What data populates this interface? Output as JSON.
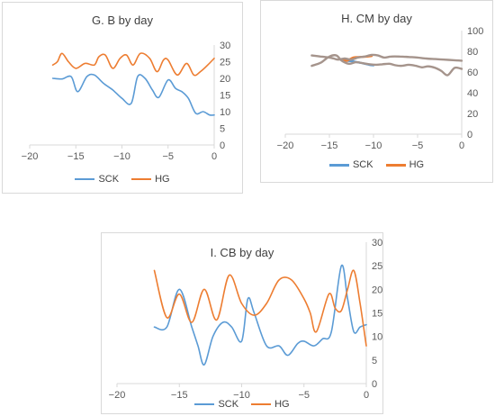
{
  "colors": {
    "SCK": "#5b9bd5",
    "HG": "#ed7d31",
    "extra": "#a5948c",
    "grid": "#d9d9d9"
  },
  "chart_data": [
    {
      "type": "line",
      "title": "G. B by day",
      "xlim": [
        -20,
        0
      ],
      "ylim": [
        0,
        30
      ],
      "x_ticks": [
        -20,
        -15,
        -10,
        -5,
        0
      ],
      "y_ticks": [
        0,
        5,
        10,
        15,
        20,
        25,
        30
      ],
      "legend": "bottom",
      "series": [
        {
          "name": "SCK",
          "color": "#5b9bd5",
          "x": [
            -17.5,
            -16.5,
            -15.5,
            -14.8,
            -13.8,
            -13,
            -12,
            -11,
            -10,
            -9,
            -8.3,
            -7.5,
            -6.7,
            -6,
            -5,
            -4.2,
            -3.5,
            -2.8,
            -2,
            -1.2,
            -0.5,
            0
          ],
          "values": [
            20,
            19.8,
            20.5,
            16,
            20.5,
            21,
            18.5,
            16.5,
            14,
            12.5,
            20.5,
            20,
            16.5,
            14.3,
            19.5,
            17,
            16,
            14,
            9.5,
            10,
            9,
            9
          ]
        },
        {
          "name": "HG",
          "color": "#ed7d31",
          "x": [
            -17.5,
            -17,
            -16.5,
            -15.8,
            -15,
            -14,
            -13,
            -12.5,
            -11.8,
            -11,
            -10.2,
            -9.5,
            -8.8,
            -8,
            -7,
            -6.2,
            -5.5,
            -5,
            -4,
            -3,
            -2.2,
            -1.5,
            -0.7,
            0
          ],
          "values": [
            24,
            25,
            27.5,
            25,
            23,
            24.5,
            24,
            26.5,
            27,
            23,
            26,
            27,
            24,
            27.5,
            26,
            22,
            25.5,
            25.5,
            21,
            24.5,
            21,
            22,
            24,
            26
          ]
        }
      ]
    },
    {
      "type": "line",
      "title": "H. CM by day",
      "xlim": [
        -20,
        0
      ],
      "ylim": [
        0,
        100
      ],
      "x_ticks": [
        -20,
        -15,
        -10,
        -5,
        0
      ],
      "y_ticks": [
        0,
        20,
        40,
        60,
        80,
        100
      ],
      "legend": "bottom",
      "series": [
        {
          "name": "SCK",
          "color": "#5b9bd5",
          "x": [
            -13.5,
            -12.5,
            -11.5,
            -10.5,
            -10
          ],
          "values": [
            71,
            70.5,
            69,
            67,
            66.5
          ]
        },
        {
          "name": "HG",
          "color": "#ed7d31",
          "x": [
            -13.5,
            -13,
            -12.3,
            -11.5,
            -10.7,
            -10.2
          ],
          "values": [
            72,
            71,
            74,
            74.5,
            75,
            75.5
          ]
        },
        {
          "color": "#a5948c",
          "x": [
            -17,
            -16,
            -15,
            -14.5,
            -14,
            -13.3,
            -12.5,
            -11.8,
            -11,
            -10.2,
            -9.5,
            -8.8,
            -8,
            -7,
            -6,
            -5,
            -4,
            -3,
            -2,
            -1,
            0
          ],
          "values": [
            76,
            75,
            74,
            73,
            72,
            73,
            72,
            74,
            75,
            76.5,
            76,
            74,
            75,
            75,
            74.5,
            74,
            73,
            72.5,
            72,
            71.5,
            71
          ]
        },
        {
          "color": "#a5948c",
          "x": [
            -17,
            -16,
            -15,
            -14.2,
            -13.6,
            -12.8,
            -12,
            -11.2,
            -10.4,
            -9.7,
            -9,
            -8.2,
            -7.5,
            -6.8,
            -6,
            -5.2,
            -4.5,
            -3.8,
            -3,
            -2.3,
            -1.6,
            -0.8,
            0
          ],
          "values": [
            66,
            69,
            75,
            76,
            71,
            68,
            69.5,
            68.5,
            67.5,
            67,
            67.5,
            68,
            66.5,
            66,
            67,
            66,
            64.5,
            65.5,
            64,
            61,
            57,
            64,
            63
          ]
        }
      ]
    },
    {
      "type": "line",
      "title": "I. CB by day",
      "xlim": [
        -20,
        0
      ],
      "ylim": [
        0,
        30
      ],
      "x_ticks": [
        -20,
        -15,
        -10,
        -5,
        0
      ],
      "y_ticks": [
        0,
        5,
        10,
        15,
        20,
        25,
        30
      ],
      "legend": "bottom",
      "series": [
        {
          "name": "SCK",
          "color": "#5b9bd5",
          "x": [
            -17,
            -16,
            -15,
            -14,
            -13.5,
            -13,
            -12.3,
            -11.5,
            -10.8,
            -10,
            -9.5,
            -9,
            -8,
            -7,
            -6.3,
            -5.5,
            -5,
            -4.2,
            -3.5,
            -2.8,
            -2,
            -1.5,
            -1,
            -0.5,
            0
          ],
          "values": [
            12,
            12,
            20,
            12,
            8,
            4,
            10,
            13,
            12,
            9,
            18,
            15,
            8,
            8,
            6,
            8.5,
            9,
            8,
            9.5,
            11,
            25,
            18,
            11,
            12,
            12.5
          ]
        },
        {
          "name": "HG",
          "color": "#ed7d31",
          "x": [
            -17,
            -16,
            -15,
            -14,
            -13,
            -12,
            -11,
            -10,
            -9,
            -8,
            -7,
            -6,
            -5,
            -4.5,
            -4,
            -3,
            -2.5,
            -2,
            -1.5,
            -1,
            -0.5,
            0
          ],
          "values": [
            24,
            14,
            19,
            13,
            20,
            13.5,
            23,
            17,
            14.5,
            17,
            22,
            22,
            18,
            15,
            11,
            19,
            16,
            15.5,
            20,
            24,
            17,
            8
          ]
        }
      ]
    }
  ]
}
